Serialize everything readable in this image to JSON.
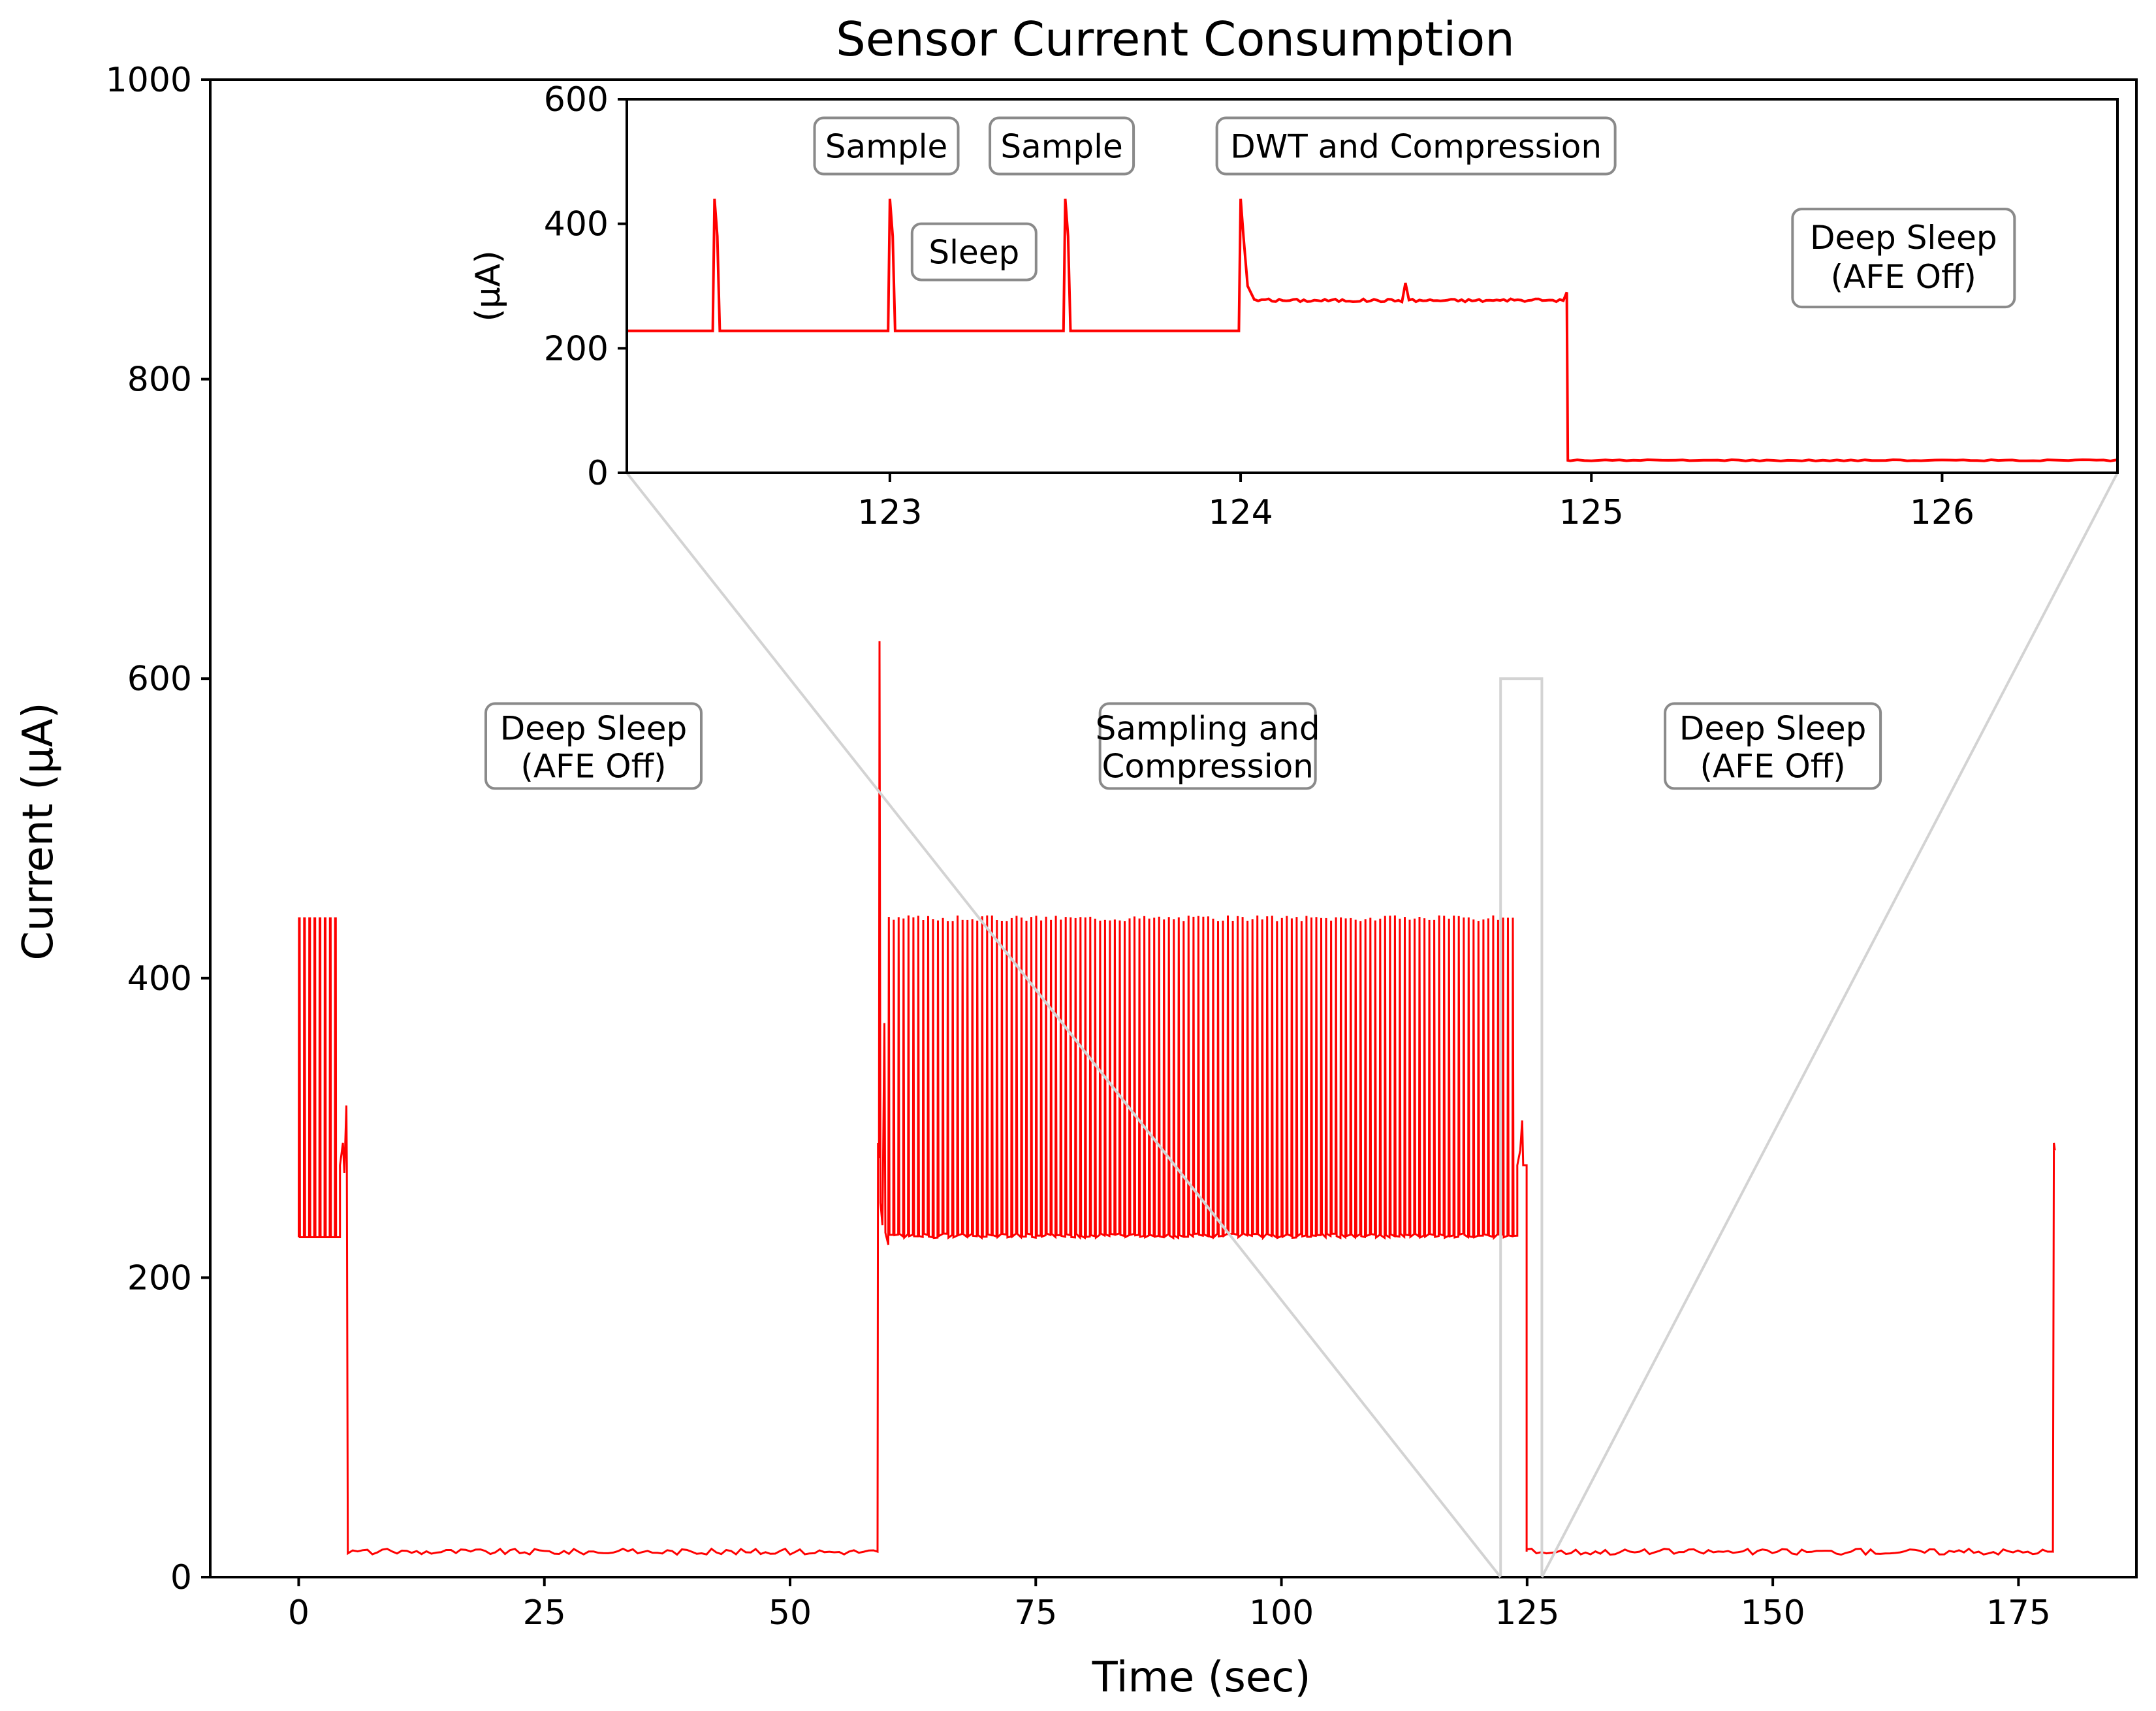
{
  "chart_data": {
    "type": "line",
    "title": "Sensor Current Consumption",
    "xlabel": "Time (sec)",
    "ylabel": "Current (μA)",
    "xlim": [
      -9,
      187
    ],
    "ylim": [
      0,
      1000
    ],
    "xticks": [
      0,
      25,
      50,
      75,
      100,
      125,
      150,
      175
    ],
    "yticks": [
      0,
      200,
      400,
      600,
      800,
      1000
    ],
    "line_color": "#ff0000",
    "segments": [
      {
        "phase": "start-pulses",
        "t_start": 0,
        "t_end": 4.2,
        "base": 227,
        "peak": 440,
        "pulse_count": 8
      },
      {
        "phase": "compress-1",
        "t_start": 4.2,
        "t_end": 5.0,
        "level": 275,
        "spike": 315
      },
      {
        "phase": "deep-sleep-1",
        "t_start": 5.0,
        "t_end": 58.9,
        "level": 17
      },
      {
        "phase": "wake-spike",
        "t": 59.1,
        "peak": 625
      },
      {
        "phase": "sampling",
        "t_start": 60.0,
        "t_end": 124.0,
        "base": 228,
        "peak": 440,
        "pulse_period": 0.5
      },
      {
        "phase": "compress-2",
        "t_start": 124.0,
        "t_end": 124.95,
        "level": 275,
        "spike": 305
      },
      {
        "phase": "deep-sleep-2",
        "t_start": 124.95,
        "t_end": 178.5,
        "level": 17
      },
      {
        "phase": "end-spike",
        "t": 178.6,
        "peak": 290
      }
    ],
    "annotations": [
      {
        "line1": "Deep Sleep",
        "line2": "(AFE Off)",
        "x": 30,
        "y": 555
      },
      {
        "line1": "Sampling and",
        "line2": "Compression",
        "x": 92.5,
        "y": 555
      },
      {
        "line1": "Deep Sleep",
        "line2": "(AFE Off)",
        "x": 150,
        "y": 555
      }
    ],
    "zoom_region": {
      "x": [
        122.3,
        126.5
      ],
      "y": [
        0,
        600
      ]
    },
    "inset": {
      "ylabel": "(μA)",
      "xlim": [
        122.25,
        126.5
      ],
      "ylim": [
        0,
        600
      ],
      "xticks": [
        123,
        124,
        125,
        126
      ],
      "yticks": [
        0,
        200,
        400,
        600
      ],
      "pulses": [
        122.5,
        123.0,
        123.5,
        124.0
      ],
      "sleep_level": 228,
      "pulse_peak": 440,
      "compression": {
        "t_start": 124.02,
        "t_end": 124.93,
        "level": 277,
        "bump": {
          "t": 124.47,
          "value": 305
        }
      },
      "deep_sleep_level": 20,
      "annotations": [
        {
          "lines": [
            "Sample"
          ],
          "x": 122.99,
          "y": 525
        },
        {
          "lines": [
            "Sample"
          ],
          "x": 123.49,
          "y": 525
        },
        {
          "lines": [
            "DWT and Compression"
          ],
          "x": 124.5,
          "y": 525
        },
        {
          "lines": [
            "Sleep"
          ],
          "x": 123.24,
          "y": 355
        },
        {
          "lines": [
            "Deep Sleep",
            "(AFE Off)"
          ],
          "x": 125.89,
          "y": 345
        }
      ]
    }
  }
}
